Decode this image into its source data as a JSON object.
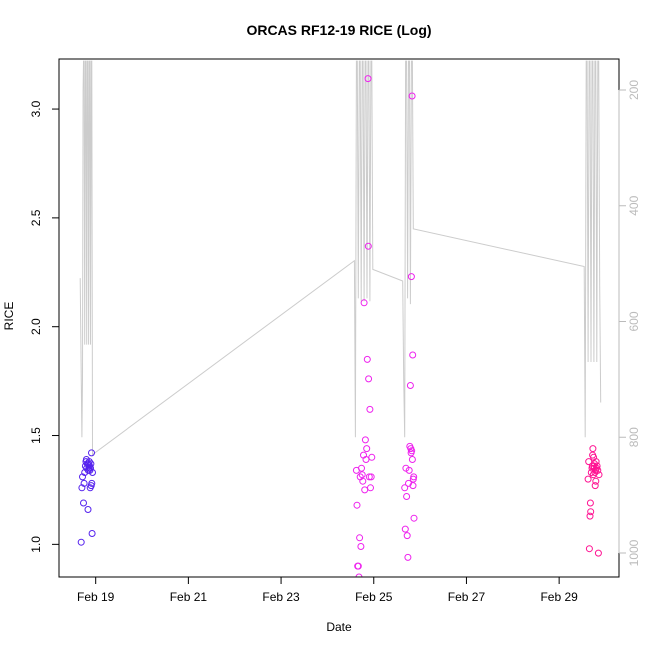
{
  "chart_data": {
    "type": "scatter",
    "title": "ORCAS RF12-19 RICE (Log)",
    "xlabel": "Date",
    "ylabel": "RICE",
    "x_unit": "date",
    "xlim": [
      "2016-02-18 05:00",
      "2016-03-01 07:00"
    ],
    "ylim": [
      0.85,
      3.23
    ],
    "x_ticks": [
      {
        "date": "2016-02-19",
        "label": "Feb 19"
      },
      {
        "date": "2016-02-21",
        "label": "Feb 21"
      },
      {
        "date": "2016-02-23",
        "label": "Feb 23"
      },
      {
        "date": "2016-02-25",
        "label": "Feb 25"
      },
      {
        "date": "2016-02-27",
        "label": "Feb 27"
      },
      {
        "date": "2016-02-29",
        "label": "Feb 29"
      }
    ],
    "y_ticks": [
      1.0,
      1.5,
      2.0,
      2.5,
      3.0
    ],
    "y_tick_labels": [
      "1.0",
      "1.5",
      "2.0",
      "2.5",
      "3.0"
    ],
    "y2_ticks": [
      200,
      400,
      600,
      800,
      1000
    ],
    "y2_tick_labels": [
      "200",
      "400",
      "600",
      "800",
      "1000"
    ],
    "y2_reversed": true,
    "y2_color": "#bbbbbb",
    "grid": false,
    "series": [
      {
        "color": "#5522ee",
        "marker": "open-circle",
        "points": [
          [
            "2016-02-18 16:30",
            1.01
          ],
          [
            "2016-02-18 16:50",
            1.26
          ],
          [
            "2016-02-18 17:10",
            1.31
          ],
          [
            "2016-02-18 17:40",
            1.19
          ],
          [
            "2016-02-18 18:00",
            1.28
          ],
          [
            "2016-02-18 18:20",
            1.33
          ],
          [
            "2016-02-18 18:40",
            1.36
          ],
          [
            "2016-02-18 19:00",
            1.38
          ],
          [
            "2016-02-18 19:10",
            1.39
          ],
          [
            "2016-02-18 19:20",
            1.35
          ],
          [
            "2016-02-18 19:40",
            1.37
          ],
          [
            "2016-02-18 20:00",
            1.16
          ],
          [
            "2016-02-18 20:10",
            1.34
          ],
          [
            "2016-02-18 20:20",
            1.37
          ],
          [
            "2016-02-18 20:30",
            1.35
          ],
          [
            "2016-02-18 20:40",
            1.38
          ],
          [
            "2016-02-18 20:50",
            1.36
          ],
          [
            "2016-02-18 21:00",
            1.34
          ],
          [
            "2016-02-18 21:10",
            1.26
          ],
          [
            "2016-02-18 21:20",
            1.35
          ],
          [
            "2016-02-18 21:30",
            1.37
          ],
          [
            "2016-02-18 21:40",
            1.27
          ],
          [
            "2016-02-18 21:50",
            1.42
          ],
          [
            "2016-02-18 22:00",
            1.28
          ],
          [
            "2016-02-18 22:10",
            1.05
          ],
          [
            "2016-02-18 22:20",
            1.33
          ]
        ]
      },
      {
        "color": "#ee22ee",
        "marker": "open-circle",
        "points": [
          [
            "2016-02-24 15:00",
            1.34
          ],
          [
            "2016-02-24 15:20",
            1.18
          ],
          [
            "2016-02-24 15:40",
            0.9
          ],
          [
            "2016-02-24 16:00",
            0.9
          ],
          [
            "2016-02-24 16:20",
            0.85
          ],
          [
            "2016-02-24 16:40",
            1.03
          ],
          [
            "2016-02-24 17:00",
            1.31
          ],
          [
            "2016-02-24 17:20",
            0.99
          ],
          [
            "2016-02-24 17:40",
            1.35
          ],
          [
            "2016-02-24 18:00",
            1.32
          ],
          [
            "2016-02-24 18:20",
            1.29
          ],
          [
            "2016-02-24 18:40",
            1.41
          ],
          [
            "2016-02-24 19:00",
            2.11
          ],
          [
            "2016-02-24 19:20",
            1.25
          ],
          [
            "2016-02-24 19:40",
            1.48
          ],
          [
            "2016-02-24 20:00",
            1.39
          ],
          [
            "2016-02-24 20:20",
            1.44
          ],
          [
            "2016-02-24 20:40",
            1.85
          ],
          [
            "2016-02-24 21:00",
            3.14
          ],
          [
            "2016-02-24 21:10",
            2.37
          ],
          [
            "2016-02-24 21:20",
            1.76
          ],
          [
            "2016-02-24 21:40",
            1.31
          ],
          [
            "2016-02-24 22:00",
            1.62
          ],
          [
            "2016-02-24 22:20",
            1.26
          ],
          [
            "2016-02-24 22:40",
            1.31
          ],
          [
            "2016-02-24 23:00",
            1.4
          ],
          [
            "2016-02-25 16:00",
            1.26
          ],
          [
            "2016-02-25 16:20",
            1.07
          ],
          [
            "2016-02-25 16:40",
            1.35
          ],
          [
            "2016-02-25 17:00",
            1.22
          ],
          [
            "2016-02-25 17:20",
            1.04
          ],
          [
            "2016-02-25 17:40",
            0.94
          ],
          [
            "2016-02-25 18:00",
            1.28
          ],
          [
            "2016-02-25 18:20",
            1.34
          ],
          [
            "2016-02-25 18:40",
            1.45
          ],
          [
            "2016-02-25 19:00",
            1.73
          ],
          [
            "2016-02-25 19:10",
            1.44
          ],
          [
            "2016-02-25 19:20",
            1.42
          ],
          [
            "2016-02-25 19:30",
            2.23
          ],
          [
            "2016-02-25 19:40",
            1.43
          ],
          [
            "2016-02-25 19:50",
            3.06
          ],
          [
            "2016-02-25 20:00",
            1.39
          ],
          [
            "2016-02-25 20:10",
            1.87
          ],
          [
            "2016-02-25 20:20",
            1.27
          ],
          [
            "2016-02-25 20:30",
            1.3
          ],
          [
            "2016-02-25 20:40",
            1.31
          ],
          [
            "2016-02-25 20:50",
            1.12
          ]
        ]
      },
      {
        "color": "#ff1493",
        "marker": "open-circle",
        "points": [
          [
            "2016-02-29 15:00",
            1.3
          ],
          [
            "2016-02-29 15:20",
            1.38
          ],
          [
            "2016-02-29 15:40",
            0.98
          ],
          [
            "2016-02-29 16:00",
            1.13
          ],
          [
            "2016-02-29 16:10",
            1.19
          ],
          [
            "2016-02-29 16:20",
            1.15
          ],
          [
            "2016-02-29 16:40",
            1.33
          ],
          [
            "2016-02-29 17:00",
            1.35
          ],
          [
            "2016-02-29 17:10",
            1.36
          ],
          [
            "2016-02-29 17:20",
            1.41
          ],
          [
            "2016-02-29 17:30",
            1.44
          ],
          [
            "2016-02-29 17:40",
            1.32
          ],
          [
            "2016-02-29 17:50",
            1.4
          ],
          [
            "2016-02-29 18:00",
            1.36
          ],
          [
            "2016-02-29 18:10",
            1.35
          ],
          [
            "2016-02-29 18:20",
            1.37
          ],
          [
            "2016-02-29 18:30",
            1.33
          ],
          [
            "2016-02-29 18:40",
            1.27
          ],
          [
            "2016-02-29 18:50",
            1.34
          ],
          [
            "2016-02-29 19:00",
            1.29
          ],
          [
            "2016-02-29 19:10",
            1.38
          ],
          [
            "2016-02-29 19:20",
            1.35
          ],
          [
            "2016-02-29 19:40",
            1.36
          ],
          [
            "2016-02-29 20:00",
            1.34
          ],
          [
            "2016-02-29 20:20",
            0.96
          ],
          [
            "2016-02-29 20:40",
            1.32
          ]
        ]
      }
    ],
    "secondary_line": {
      "color": "#cccccc",
      "axis": "y2",
      "points": [
        [
          "2016-02-18 16:00",
          525
        ],
        [
          "2016-02-18 16:30",
          690
        ],
        [
          "2016-02-18 16:50",
          800
        ],
        [
          "2016-02-18 17:10",
          700
        ],
        [
          "2016-02-18 17:30",
          200
        ],
        [
          "2016-02-18 17:40",
          150
        ],
        [
          "2016-02-18 18:00",
          150
        ],
        [
          "2016-02-18 18:20",
          640
        ],
        [
          "2016-02-18 18:40",
          150
        ],
        [
          "2016-02-18 19:00",
          150
        ],
        [
          "2016-02-18 19:20",
          640
        ],
        [
          "2016-02-18 19:40",
          150
        ],
        [
          "2016-02-18 20:00",
          150
        ],
        [
          "2016-02-18 20:20",
          640
        ],
        [
          "2016-02-18 20:40",
          150
        ],
        [
          "2016-02-18 21:00",
          150
        ],
        [
          "2016-02-18 21:20",
          640
        ],
        [
          "2016-02-18 21:40",
          150
        ],
        [
          "2016-02-18 22:00",
          150
        ],
        [
          "2016-02-18 22:20",
          830
        ],
        [
          "2016-02-24 14:00",
          495
        ],
        [
          "2016-02-24 14:30",
          800
        ],
        [
          "2016-02-24 15:00",
          150
        ],
        [
          "2016-02-24 15:30",
          150
        ],
        [
          "2016-02-24 16:00",
          560
        ],
        [
          "2016-02-24 16:30",
          150
        ],
        [
          "2016-02-24 17:00",
          150
        ],
        [
          "2016-02-24 17:30",
          565
        ],
        [
          "2016-02-24 18:00",
          150
        ],
        [
          "2016-02-24 18:30",
          150
        ],
        [
          "2016-02-24 19:00",
          565
        ],
        [
          "2016-02-24 19:30",
          150
        ],
        [
          "2016-02-24 20:00",
          150
        ],
        [
          "2016-02-24 20:30",
          560
        ],
        [
          "2016-02-24 21:00",
          150
        ],
        [
          "2016-02-24 21:30",
          150
        ],
        [
          "2016-02-24 22:00",
          565
        ],
        [
          "2016-02-24 22:30",
          150
        ],
        [
          "2016-02-24 23:00",
          150
        ],
        [
          "2016-02-24 23:30",
          510
        ],
        [
          "2016-02-25 15:00",
          530
        ],
        [
          "2016-02-25 15:30",
          700
        ],
        [
          "2016-02-25 16:00",
          800
        ],
        [
          "2016-02-25 16:30",
          150
        ],
        [
          "2016-02-25 17:00",
          150
        ],
        [
          "2016-02-25 17:30",
          560
        ],
        [
          "2016-02-25 18:00",
          150
        ],
        [
          "2016-02-25 18:30",
          150
        ],
        [
          "2016-02-25 19:00",
          570
        ],
        [
          "2016-02-25 19:30",
          150
        ],
        [
          "2016-02-25 20:00",
          150
        ],
        [
          "2016-02-25 20:30",
          440
        ],
        [
          "2016-02-29 13:00",
          505
        ],
        [
          "2016-02-29 13:30",
          800
        ],
        [
          "2016-02-29 14:00",
          150
        ],
        [
          "2016-02-29 14:30",
          150
        ],
        [
          "2016-02-29 15:00",
          670
        ],
        [
          "2016-02-29 15:30",
          150
        ],
        [
          "2016-02-29 16:00",
          150
        ],
        [
          "2016-02-29 16:30",
          670
        ],
        [
          "2016-02-29 17:00",
          150
        ],
        [
          "2016-02-29 17:30",
          150
        ],
        [
          "2016-02-29 18:00",
          670
        ],
        [
          "2016-02-29 18:30",
          150
        ],
        [
          "2016-02-29 19:00",
          150
        ],
        [
          "2016-02-29 19:30",
          670
        ],
        [
          "2016-02-29 20:00",
          150
        ],
        [
          "2016-02-29 20:30",
          150
        ],
        [
          "2016-02-29 21:00",
          540
        ],
        [
          "2016-02-29 21:30",
          740
        ]
      ]
    }
  }
}
